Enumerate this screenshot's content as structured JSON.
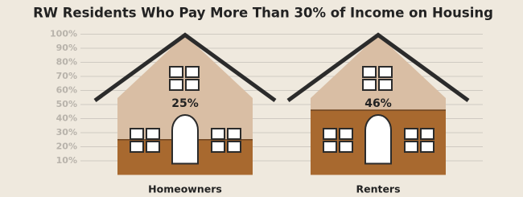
{
  "chart_data": {
    "type": "house",
    "title": "RW Residents Who Pay More Than 30% of Income on Housing",
    "categories": [
      "Homeowners",
      "Renters"
    ],
    "values": [
      25,
      46
    ],
    "value_labels": [
      "25%",
      "46%"
    ],
    "color": "#a8692f",
    "empty_color": "#d9bea4",
    "ylim": [
      0,
      100
    ],
    "yticks": [
      {
        "value": 10,
        "label": "10%"
      },
      {
        "value": 20,
        "label": "20%"
      },
      {
        "value": 30,
        "label": "30%"
      },
      {
        "value": 40,
        "label": "40%"
      },
      {
        "value": 50,
        "label": "50%"
      },
      {
        "value": 60,
        "label": "60%"
      },
      {
        "value": 70,
        "label": "70%"
      },
      {
        "value": 80,
        "label": "80%"
      },
      {
        "value": 90,
        "label": "90%"
      },
      {
        "value": 100,
        "label": "100%"
      }
    ],
    "grid": true
  }
}
